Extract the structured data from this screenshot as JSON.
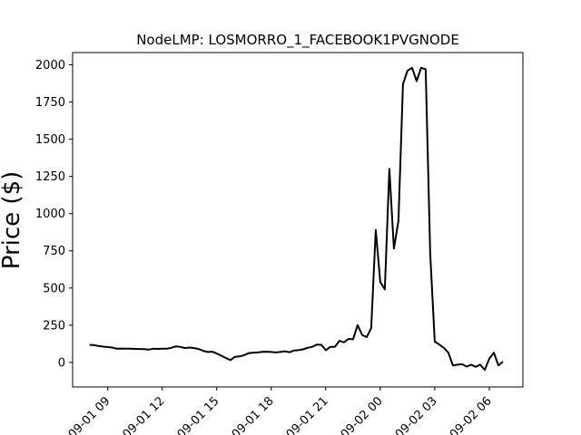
{
  "chart_data": {
    "type": "line",
    "title": "NodeLMP: LOSMORRO_1_FACEBOOK1PVGNODE",
    "xlabel": "",
    "ylabel": "Price ($)",
    "ylim": [
      -165,
      2082
    ],
    "xlim": [
      "2020-09-01 07:04",
      "2020-09-02 07:51"
    ],
    "grid": false,
    "x_ticks": [
      "09-01 09",
      "09-01 12",
      "09-01 15",
      "09-01 18",
      "09-01 21",
      "09-02 00",
      "09-02 03",
      "09-02 06"
    ],
    "y_ticks": [
      0,
      250,
      500,
      750,
      1000,
      1250,
      1500,
      1750,
      2000
    ],
    "line_color": "#000000",
    "series": [
      {
        "x": [
          "2020-09-01 08:00",
          "2020-09-01 08:15",
          "2020-09-01 08:30",
          "2020-09-01 08:45",
          "2020-09-01 09:00",
          "2020-09-01 09:15",
          "2020-09-01 09:30",
          "2020-09-01 09:45",
          "2020-09-01 10:00",
          "2020-09-01 10:15",
          "2020-09-01 10:30",
          "2020-09-01 10:45",
          "2020-09-01 11:00",
          "2020-09-01 11:15",
          "2020-09-01 11:30",
          "2020-09-01 11:45",
          "2020-09-01 12:00",
          "2020-09-01 12:15",
          "2020-09-01 12:30",
          "2020-09-01 12:45",
          "2020-09-01 13:00",
          "2020-09-01 13:15",
          "2020-09-01 13:30",
          "2020-09-01 13:45",
          "2020-09-01 14:00",
          "2020-09-01 14:15",
          "2020-09-01 14:30",
          "2020-09-01 14:45",
          "2020-09-01 15:00",
          "2020-09-01 15:15",
          "2020-09-01 15:30",
          "2020-09-01 15:45",
          "2020-09-01 16:00",
          "2020-09-01 16:15",
          "2020-09-01 16:30",
          "2020-09-01 16:45",
          "2020-09-01 17:00",
          "2020-09-01 17:15",
          "2020-09-01 17:30",
          "2020-09-01 17:45",
          "2020-09-01 18:00",
          "2020-09-01 18:15",
          "2020-09-01 18:30",
          "2020-09-01 18:45",
          "2020-09-01 19:00",
          "2020-09-01 19:15",
          "2020-09-01 19:30",
          "2020-09-01 19:45",
          "2020-09-01 20:00",
          "2020-09-01 20:15",
          "2020-09-01 20:30",
          "2020-09-01 20:45",
          "2020-09-01 21:00",
          "2020-09-01 21:15",
          "2020-09-01 21:30",
          "2020-09-01 21:45",
          "2020-09-01 22:00",
          "2020-09-01 22:15",
          "2020-09-01 22:30",
          "2020-09-01 22:45",
          "2020-09-01 23:00",
          "2020-09-01 23:15",
          "2020-09-01 23:30",
          "2020-09-01 23:45",
          "2020-09-02 00:00",
          "2020-09-02 00:15",
          "2020-09-02 00:30",
          "2020-09-02 00:45",
          "2020-09-02 01:00",
          "2020-09-02 01:15",
          "2020-09-02 01:30",
          "2020-09-02 01:45",
          "2020-09-02 02:00",
          "2020-09-02 02:15",
          "2020-09-02 02:30",
          "2020-09-02 02:45",
          "2020-09-02 03:00",
          "2020-09-02 03:15",
          "2020-09-02 03:30",
          "2020-09-02 03:45",
          "2020-09-02 04:00",
          "2020-09-02 04:15",
          "2020-09-02 04:30",
          "2020-09-02 04:45",
          "2020-09-02 05:00",
          "2020-09-02 05:15",
          "2020-09-02 05:30",
          "2020-09-02 05:45",
          "2020-09-02 06:00",
          "2020-09-02 06:15",
          "2020-09-02 06:30",
          "2020-09-02 06:45"
        ],
        "values": [
          118,
          116,
          110,
          106,
          103,
          100,
          92,
          93,
          92,
          92,
          91,
          90,
          89,
          86,
          92,
          91,
          92,
          92,
          98,
          108,
          104,
          97,
          100,
          96,
          90,
          78,
          70,
          72,
          60,
          45,
          30,
          15,
          38,
          40,
          48,
          62,
          65,
          67,
          71,
          72,
          70,
          67,
          70,
          75,
          68,
          80,
          82,
          88,
          98,
          104,
          120,
          118,
          82,
          105,
          105,
          145,
          135,
          158,
          155,
          250,
          185,
          170,
          230,
          890,
          540,
          490,
          1300,
          765,
          950,
          1870,
          1960,
          1980,
          1890,
          1980,
          1970,
          730,
          140,
          120,
          98,
          65,
          -20,
          -15,
          -12,
          -28,
          -15,
          -30,
          -15,
          -50,
          25,
          65,
          -20,
          5
        ]
      }
    ]
  }
}
